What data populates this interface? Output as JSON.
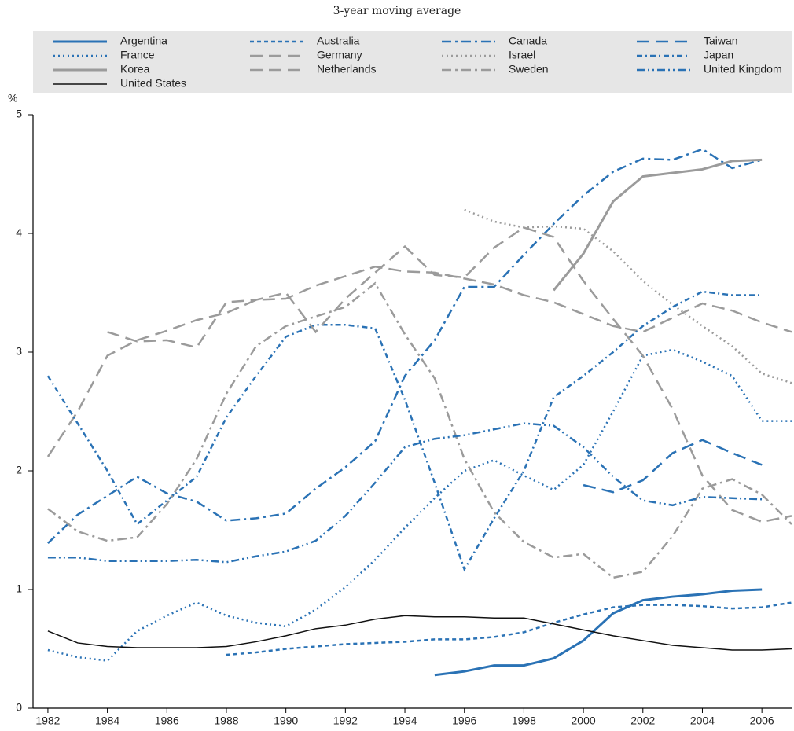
{
  "chart_data": {
    "type": "line",
    "subtitle": "3-year moving average",
    "y_label": "%",
    "x": [
      1982,
      1983,
      1984,
      1985,
      1986,
      1987,
      1988,
      1989,
      1990,
      1991,
      1992,
      1993,
      1994,
      1995,
      1996,
      1997,
      1998,
      1999,
      2000,
      2001,
      2002,
      2003,
      2004,
      2005,
      2006,
      2007
    ],
    "xlim": [
      1981.5,
      2007
    ],
    "xticks": [
      1982,
      1984,
      1986,
      1988,
      1990,
      1992,
      1994,
      1996,
      1998,
      2000,
      2002,
      2004,
      2006
    ],
    "ylim": [
      0,
      5
    ],
    "yticks": [
      0,
      1,
      2,
      3,
      4,
      5
    ],
    "grid": false,
    "legend": "top",
    "series": [
      {
        "name": "Argentina",
        "color": "#2a72b5",
        "style": "solid",
        "values": [
          null,
          null,
          null,
          null,
          null,
          null,
          null,
          null,
          null,
          null,
          null,
          null,
          null,
          0.28,
          0.31,
          0.36,
          0.36,
          0.42,
          0.57,
          0.8,
          0.91,
          0.94,
          0.96,
          0.99,
          1.0,
          null
        ]
      },
      {
        "name": "Australia",
        "color": "#2a72b5",
        "style": "dashed",
        "values": [
          null,
          null,
          null,
          null,
          null,
          null,
          0.45,
          0.47,
          0.5,
          0.52,
          0.54,
          0.55,
          0.56,
          0.58,
          0.58,
          0.6,
          0.64,
          0.72,
          0.79,
          0.85,
          0.87,
          0.87,
          0.86,
          0.84,
          0.85,
          0.89
        ]
      },
      {
        "name": "Canada",
        "color": "#2a72b5",
        "style": "dashdot",
        "values": [
          1.39,
          1.63,
          1.79,
          1.95,
          1.81,
          1.74,
          1.58,
          1.6,
          1.64,
          1.85,
          2.03,
          2.25,
          2.8,
          3.1,
          3.55,
          3.55,
          3.82,
          4.08,
          4.32,
          4.52,
          4.63,
          4.62,
          4.71,
          4.55,
          4.62,
          null
        ]
      },
      {
        "name": "Taiwan",
        "color": "#2a72b5",
        "style": "longdash",
        "values": [
          null,
          null,
          null,
          null,
          null,
          null,
          null,
          null,
          null,
          null,
          null,
          null,
          null,
          null,
          null,
          null,
          null,
          null,
          1.88,
          1.82,
          1.92,
          2.15,
          2.26,
          2.15,
          2.05,
          null
        ]
      },
      {
        "name": "France",
        "color": "#2a72b5",
        "style": "dotted",
        "values": [
          0.49,
          0.43,
          0.4,
          0.65,
          0.78,
          0.89,
          0.78,
          0.72,
          0.69,
          0.83,
          1.02,
          1.25,
          1.52,
          1.77,
          2.0,
          2.09,
          1.96,
          1.84,
          2.05,
          2.5,
          2.97,
          3.02,
          2.92,
          2.8,
          2.42,
          2.42
        ]
      },
      {
        "name": "Germany",
        "color": "#9b9b9b",
        "style": "longdash",
        "values": [
          2.12,
          2.5,
          2.97,
          3.1,
          3.18,
          3.27,
          3.33,
          3.44,
          3.45,
          3.56,
          3.64,
          3.72,
          3.68,
          3.67,
          3.62,
          3.57,
          3.48,
          3.42,
          3.32,
          3.22,
          3.17,
          3.29,
          3.41,
          3.35,
          3.25,
          3.17
        ]
      },
      {
        "name": "Israel",
        "color": "#9b9b9b",
        "style": "dotted",
        "values": [
          null,
          null,
          null,
          null,
          null,
          null,
          null,
          null,
          null,
          null,
          null,
          null,
          null,
          null,
          4.2,
          4.1,
          4.05,
          4.06,
          4.04,
          3.85,
          3.6,
          3.4,
          3.22,
          3.05,
          2.82,
          2.74
        ]
      },
      {
        "name": "Japan",
        "color": "#2a72b5",
        "style": "dashdotshort",
        "values": [
          2.8,
          2.4,
          2.0,
          1.55,
          1.75,
          1.95,
          2.45,
          2.8,
          3.13,
          3.23,
          3.23,
          3.2,
          2.6,
          1.9,
          1.17,
          1.6,
          2.0,
          2.62,
          2.8,
          3.0,
          3.22,
          3.38,
          3.51,
          3.48,
          3.48,
          null
        ]
      },
      {
        "name": "Korea",
        "color": "#9b9b9b",
        "style": "solid",
        "values": [
          null,
          null,
          null,
          null,
          null,
          null,
          null,
          null,
          null,
          null,
          null,
          null,
          null,
          null,
          null,
          null,
          null,
          3.52,
          3.83,
          4.27,
          4.48,
          4.51,
          4.54,
          4.61,
          4.62,
          null
        ]
      },
      {
        "name": "Netherlands",
        "color": "#9b9b9b",
        "style": "longdash",
        "values": [
          null,
          null,
          3.17,
          3.09,
          3.1,
          3.04,
          3.42,
          3.44,
          3.5,
          3.17,
          3.45,
          3.67,
          3.89,
          3.65,
          3.63,
          3.88,
          4.05,
          3.97,
          3.6,
          3.28,
          2.97,
          2.52,
          1.96,
          1.67,
          1.57,
          1.62
        ]
      },
      {
        "name": "Sweden",
        "color": "#9b9b9b",
        "style": "dashdot",
        "values": [
          1.68,
          1.49,
          1.41,
          1.44,
          1.72,
          2.1,
          2.65,
          3.05,
          3.22,
          3.3,
          3.38,
          3.58,
          3.15,
          2.78,
          2.1,
          1.65,
          1.4,
          1.27,
          1.3,
          1.1,
          1.15,
          1.45,
          1.85,
          1.93,
          1.8,
          1.55
        ]
      },
      {
        "name": "United Kingdom",
        "color": "#2a72b5",
        "style": "dashdotdot",
        "values": [
          1.27,
          1.27,
          1.24,
          1.24,
          1.24,
          1.25,
          1.23,
          1.28,
          1.32,
          1.41,
          1.62,
          1.9,
          2.2,
          2.27,
          2.3,
          2.35,
          2.4,
          2.38,
          2.2,
          1.95,
          1.75,
          1.71,
          1.78,
          1.77,
          1.76,
          null
        ]
      },
      {
        "name": "United States",
        "color": "#111111",
        "style": "thin",
        "values": [
          0.65,
          0.55,
          0.52,
          0.51,
          0.51,
          0.51,
          0.52,
          0.56,
          0.61,
          0.67,
          0.7,
          0.75,
          0.78,
          0.77,
          0.77,
          0.76,
          0.76,
          0.71,
          0.66,
          0.61,
          0.57,
          0.53,
          0.51,
          0.49,
          0.49,
          0.5
        ]
      }
    ]
  }
}
